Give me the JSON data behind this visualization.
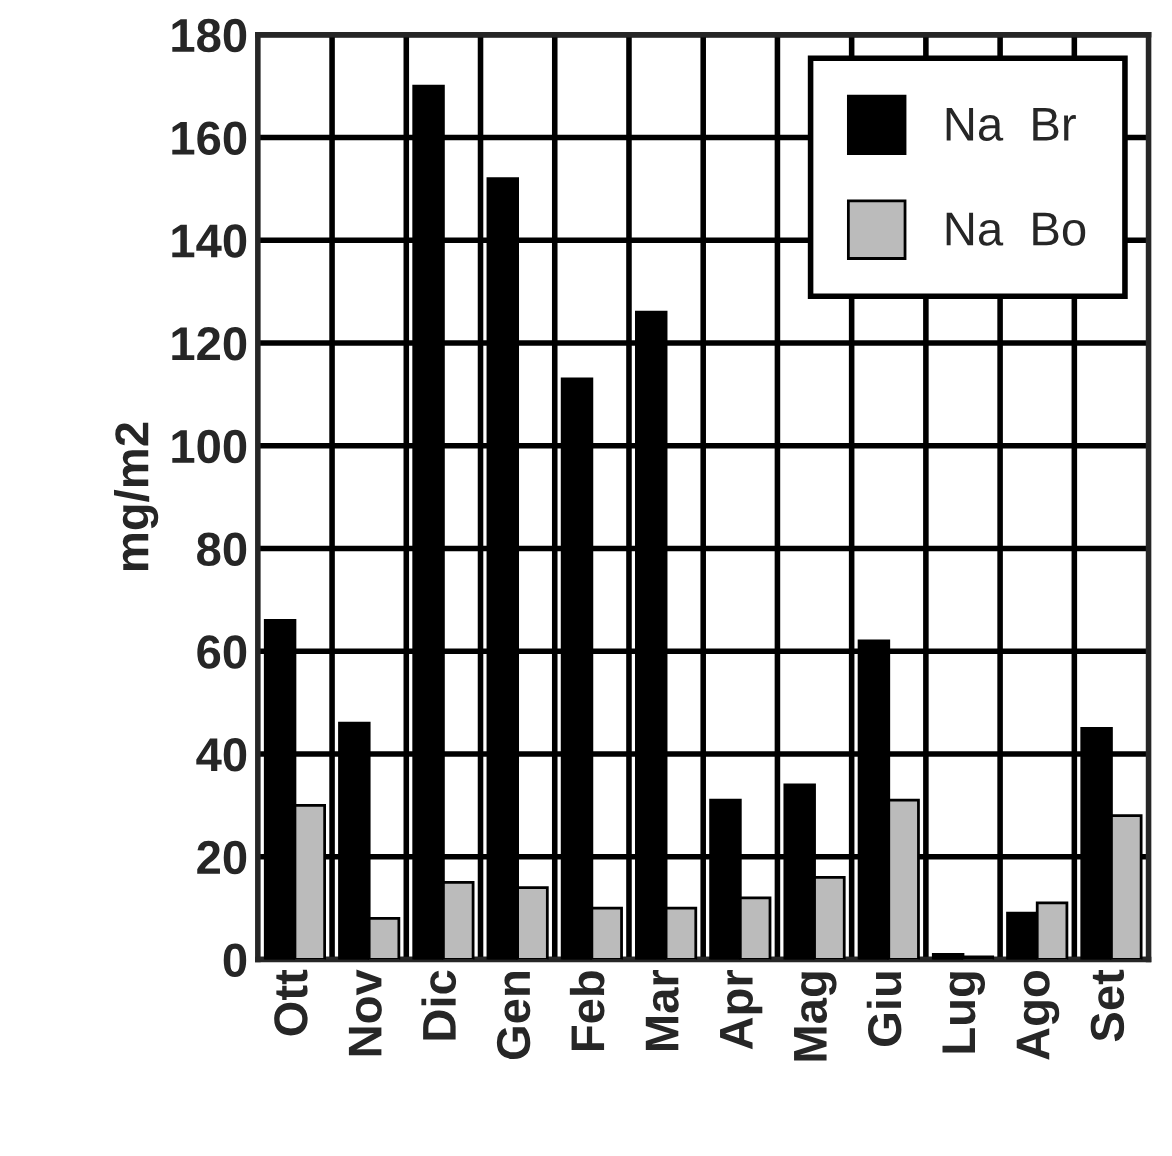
{
  "chart_data": {
    "type": "bar",
    "ylabel": "mg/m2",
    "categories": [
      "Ott",
      "Nov",
      "Dic",
      "Gen",
      "Feb",
      "Mar",
      "Apr",
      "Mag",
      "Giu",
      "Lug",
      "Ago",
      "Set"
    ],
    "series": [
      {
        "name": "Na  Br",
        "color": "#000000",
        "values": [
          66,
          46,
          170,
          152,
          113,
          126,
          31,
          34,
          62,
          1,
          9,
          45
        ]
      },
      {
        "name": "Na  Bo",
        "color": "#bbbbbb",
        "values": [
          30,
          8,
          15,
          14,
          10,
          10,
          12,
          16,
          31,
          0.5,
          11,
          28
        ]
      }
    ],
    "ylim": [
      0,
      180
    ],
    "yticks": [
      0,
      20,
      40,
      60,
      80,
      100,
      120,
      140,
      160,
      180
    ],
    "grid": true,
    "legend": "top right"
  }
}
